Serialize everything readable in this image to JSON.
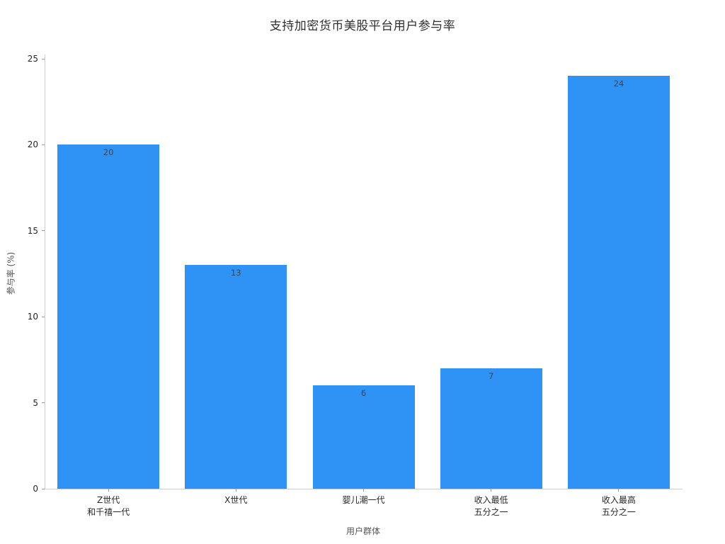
{
  "chart_data": {
    "type": "bar",
    "title": "支持加密货币美股平台用户参与率",
    "xlabel": "用户群体",
    "ylabel": "参与率 (%)",
    "categories": [
      [
        "Z世代",
        "和千禧一代"
      ],
      [
        "X世代"
      ],
      [
        "婴儿潮一代"
      ],
      [
        "收入最低",
        "五分之一"
      ],
      [
        "收入最高",
        "五分之一"
      ]
    ],
    "values": [
      20,
      13,
      6,
      7,
      24
    ],
    "value_labels": [
      "20",
      "13",
      "6",
      "7",
      "24"
    ],
    "yticks": [
      0,
      5,
      10,
      15,
      20,
      25
    ],
    "ytick_labels": [
      "0",
      "5",
      "10",
      "15",
      "20",
      "25"
    ],
    "ylim": [
      0,
      25.25
    ],
    "bar_color": "#2E93F5",
    "grid": false,
    "legend": null,
    "value_label_position": "inside-top"
  }
}
